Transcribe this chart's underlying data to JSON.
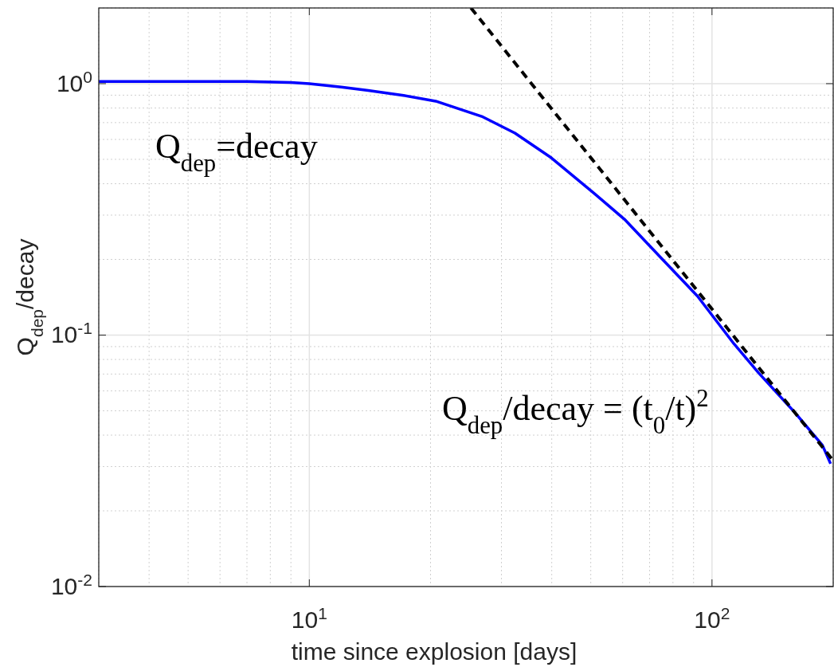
{
  "chart_data": {
    "type": "line",
    "xlabel": "time since explosion [days]",
    "ylabel": "Q$_{dep}$/decay",
    "log": "xy",
    "grid": true,
    "xlim": [
      3,
      200
    ],
    "ylim": [
      0.01,
      2
    ],
    "xticks": [
      {
        "value": 10,
        "label": "10$^{1}$"
      },
      {
        "value": 100,
        "label": "10$^{2}$"
      }
    ],
    "yticks": [
      {
        "value": 0.01,
        "label": "10$^{-2}$"
      },
      {
        "value": 0.1,
        "label": "10$^{-1}$"
      },
      {
        "value": 1,
        "label": "10$^{0}$"
      }
    ],
    "series": [
      {
        "color": "#0000ff",
        "line_style": "solid",
        "x": [
          3,
          5,
          7,
          9,
          10,
          12,
          14,
          17,
          20.6,
          26.8,
          32.4,
          39.9,
          50.9,
          60.6,
          74.7,
          92,
          113.4,
          130.4,
          160.6,
          188,
          197
        ],
        "values": [
          1.02,
          1.02,
          1.02,
          1.01,
          1.0,
          0.97,
          0.94,
          0.9,
          0.852,
          0.741,
          0.636,
          0.507,
          0.367,
          0.289,
          0.203,
          0.143,
          0.0923,
          0.0709,
          0.0492,
          0.0365,
          0.0308
        ]
      },
      {
        "color": "#000000",
        "line_style": "dashed",
        "x": [
          25.2,
          200
        ],
        "values": [
          2,
          0.0317
        ]
      }
    ],
    "annotations": [
      "Q$_{dep}$=decay",
      "Q$_{dep}$/decay = (t$_{0}$/t)$^{2}$"
    ]
  }
}
